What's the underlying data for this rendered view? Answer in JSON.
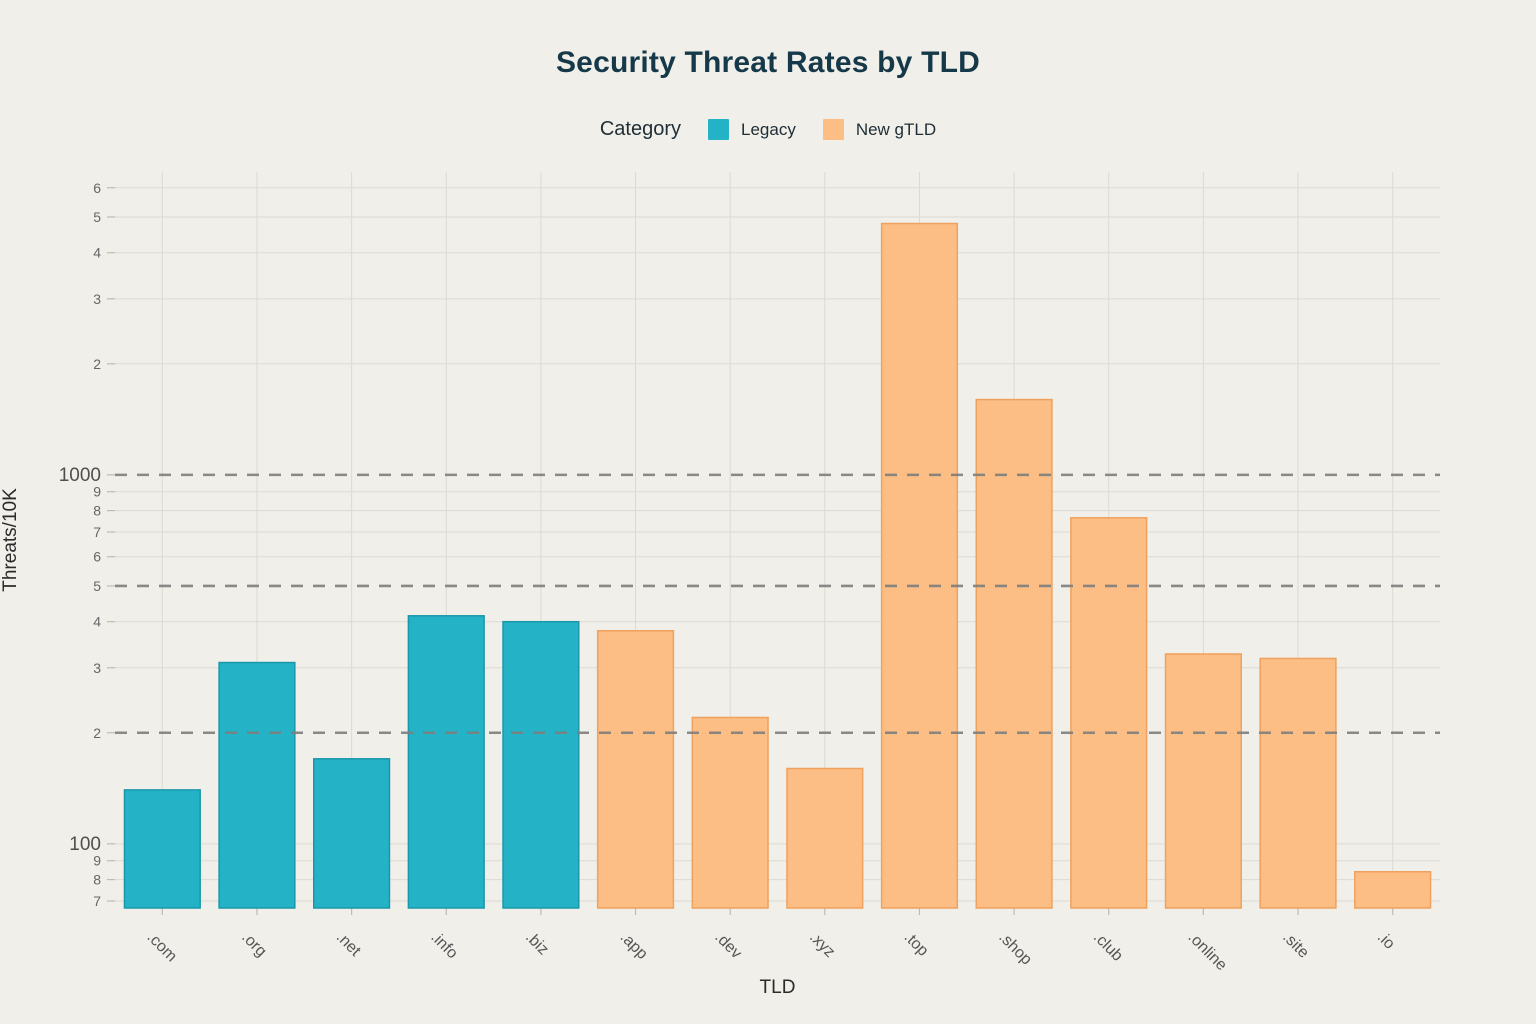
{
  "title": "Security Threat Rates by TLD",
  "chart_data": {
    "type": "bar",
    "title": "Security Threat Rates by TLD",
    "legend_title": "Category",
    "legend_position": "top",
    "xlabel": "TLD",
    "ylabel": "Threats/10K",
    "yscale": "log",
    "ylim": [
      67,
      6620
    ],
    "grid": true,
    "categories": [
      ".com",
      ".org",
      ".net",
      ".info",
      ".biz",
      ".app",
      ".dev",
      ".xyz",
      ".top",
      ".shop",
      ".club",
      ".online",
      ".site",
      ".io"
    ],
    "values": [
      140,
      310,
      170,
      415,
      400,
      378,
      220,
      160,
      4800,
      1600,
      765,
      327,
      318,
      84
    ],
    "groups": [
      "Legacy",
      "Legacy",
      "Legacy",
      "Legacy",
      "Legacy",
      "New gTLD",
      "New gTLD",
      "New gTLD",
      "New gTLD",
      "New gTLD",
      "New gTLD",
      "New gTLD",
      "New gTLD",
      "New gTLD"
    ],
    "series": [
      {
        "name": "Legacy",
        "fill": "#23b2c6",
        "stroke": "#1a98aa"
      },
      {
        "name": "New gTLD",
        "fill": "#fcbe85",
        "stroke": "#efa15d"
      }
    ],
    "y_ticks": [
      {
        "value": 70,
        "label": "7",
        "major": false
      },
      {
        "value": 80,
        "label": "8",
        "major": false
      },
      {
        "value": 90,
        "label": "9",
        "major": false
      },
      {
        "value": 100,
        "label": "100",
        "major": true
      },
      {
        "value": 200,
        "label": "2",
        "major": false
      },
      {
        "value": 300,
        "label": "3",
        "major": false
      },
      {
        "value": 400,
        "label": "4",
        "major": false
      },
      {
        "value": 500,
        "label": "5",
        "major": false
      },
      {
        "value": 600,
        "label": "6",
        "major": false
      },
      {
        "value": 700,
        "label": "7",
        "major": false
      },
      {
        "value": 800,
        "label": "8",
        "major": false
      },
      {
        "value": 900,
        "label": "9",
        "major": false
      },
      {
        "value": 1000,
        "label": "1000",
        "major": true
      },
      {
        "value": 2000,
        "label": "2",
        "major": false
      },
      {
        "value": 3000,
        "label": "3",
        "major": false
      },
      {
        "value": 4000,
        "label": "4",
        "major": false
      },
      {
        "value": 5000,
        "label": "5",
        "major": false
      },
      {
        "value": 6000,
        "label": "6",
        "major": false
      }
    ],
    "dashed_reference_lines": [
      200,
      500,
      1000
    ]
  },
  "colors": {
    "background": "#f0efe9",
    "grid": "#dcdad1",
    "tick": "#bdbbb2",
    "dashed_line": "#7e7e7e",
    "title_text": "#16394a",
    "legend_text": "#202f37",
    "axis_title_text": "#2b2b2b",
    "tick_label_major": "#4f4f4f",
    "tick_label_minor": "#666666",
    "x_tick_label": "#555555"
  }
}
